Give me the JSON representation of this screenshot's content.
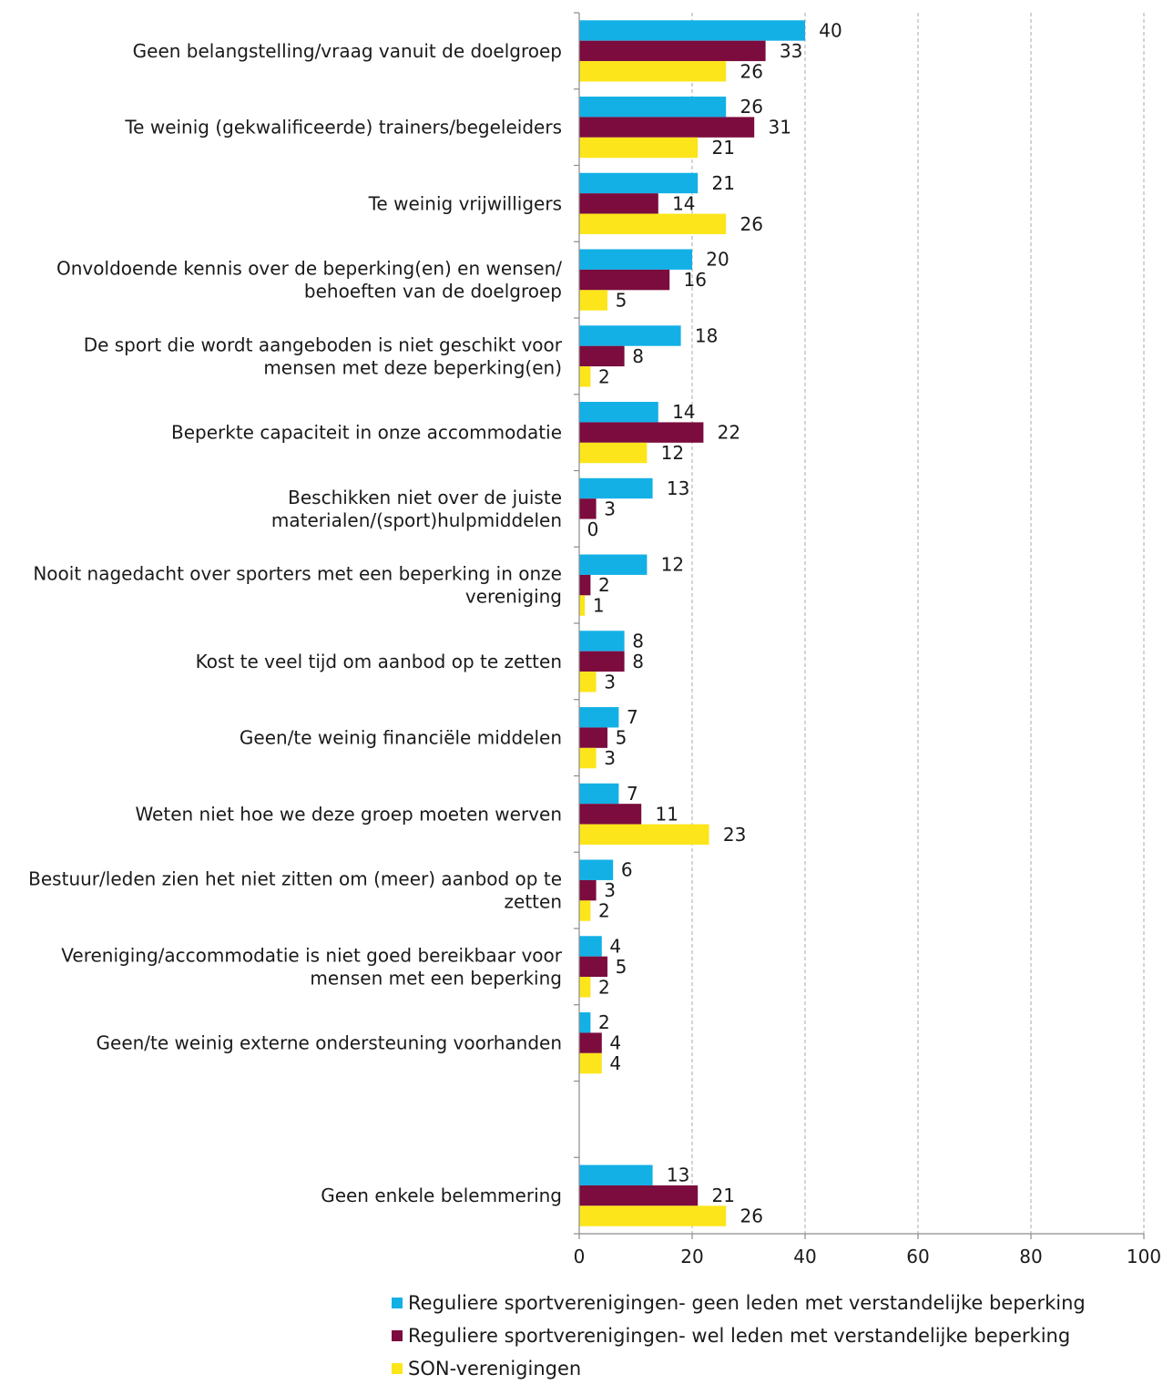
{
  "chart_data": {
    "type": "bar",
    "orientation": "horizontal",
    "categories": [
      [
        "Geen belangstelling/vraag vanuit de doelgroep"
      ],
      [
        "Te weinig (gekwalificeerde) trainers/begeleiders"
      ],
      [
        "Te weinig vrijwilligers"
      ],
      [
        "Onvoldoende kennis over de beperking(en) en wensen/",
        "behoeften van de doelgroep"
      ],
      [
        "De sport die wordt aangeboden is niet geschikt voor",
        "mensen met deze beperking(en)"
      ],
      [
        "Beperkte capaciteit in onze accommodatie"
      ],
      [
        "Beschikken niet over de juiste",
        "materialen/(sport)hulpmiddelen"
      ],
      [
        "Nooit nagedacht over sporters met een beperking in onze",
        "vereniging"
      ],
      [
        "Kost te veel tijd om aanbod op te zetten"
      ],
      [
        "Geen/te weinig financiële middelen"
      ],
      [
        "Weten niet hoe we deze groep moeten werven"
      ],
      [
        "Bestuur/leden zien het niet zitten om (meer) aanbod op te",
        "zetten"
      ],
      [
        "Vereniging/accommodatie is niet goed bereikbaar voor",
        "mensen met een beperking"
      ],
      [
        "Geen/te weinig externe ondersteuning voorhanden"
      ],
      [],
      [
        "Geen enkele belemmering"
      ]
    ],
    "series": [
      {
        "name": "Reguliere sportverenigingen- geen leden met verstandelijke beperking",
        "color": "#13b0e6",
        "values": [
          40,
          26,
          21,
          20,
          18,
          14,
          13,
          12,
          8,
          7,
          7,
          6,
          4,
          2,
          null,
          13
        ]
      },
      {
        "name": "Reguliere sportverenigingen- wel leden met verstandelijke beperking",
        "color": "#7b0c3d",
        "values": [
          33,
          31,
          14,
          16,
          8,
          22,
          3,
          2,
          8,
          5,
          11,
          3,
          5,
          4,
          null,
          21
        ]
      },
      {
        "name": "SON-verenigingen",
        "color": "#fce51a",
        "values": [
          26,
          21,
          26,
          5,
          2,
          12,
          0,
          1,
          3,
          3,
          23,
          2,
          2,
          4,
          null,
          26
        ]
      }
    ],
    "xlim": [
      0,
      100
    ],
    "xticks": [
      "0",
      "20",
      "40",
      "60",
      "80",
      "100"
    ],
    "grid": "vertical dashed",
    "legend_position": "bottom"
  }
}
